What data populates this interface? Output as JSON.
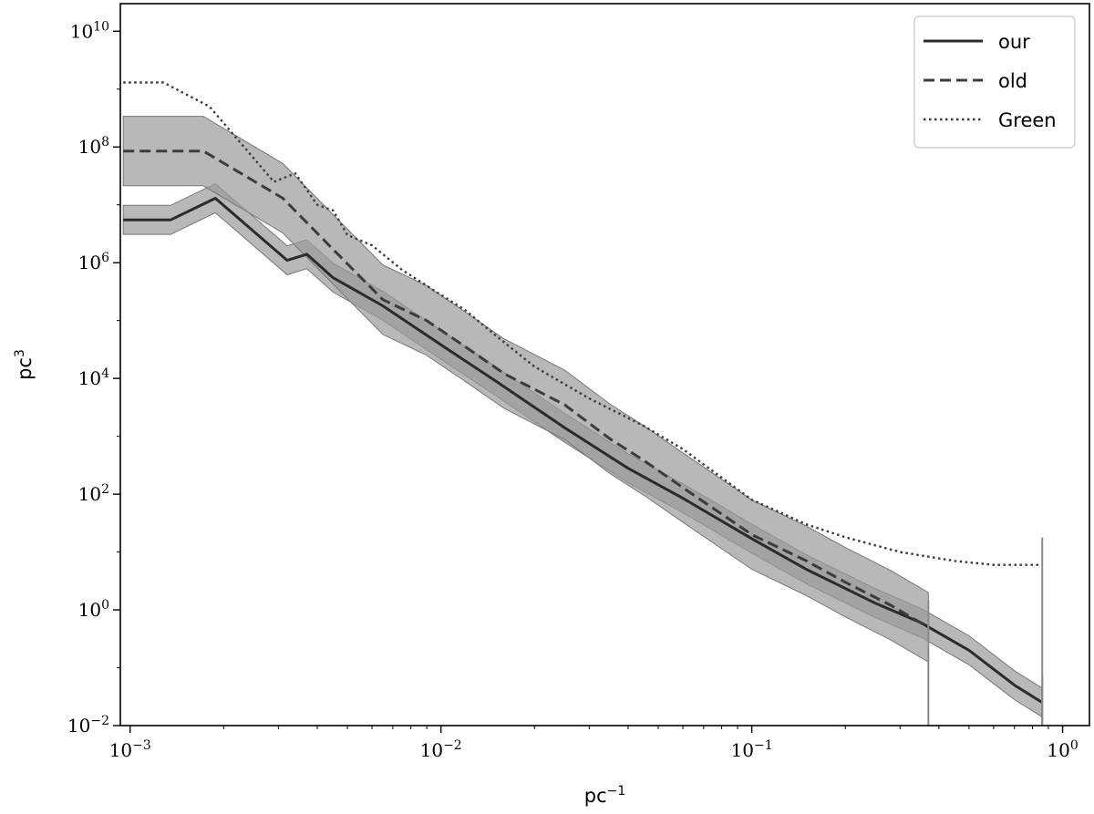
{
  "chart_data": {
    "type": "line",
    "xlabel_base": "pc",
    "xlabel_exp": "−1",
    "ylabel_base": "pc",
    "ylabel_exp": "3",
    "xscale": "log",
    "yscale": "log",
    "xlim": [
      0.00093,
      1.22
    ],
    "ylim": [
      0.01,
      30000000000
    ],
    "grid": false,
    "legend_position": "top-right",
    "x_ticks": [
      {
        "value": 0.001,
        "base": "10",
        "exp": "−3"
      },
      {
        "value": 0.01,
        "base": "10",
        "exp": "−2"
      },
      {
        "value": 0.1,
        "base": "10",
        "exp": "−1"
      },
      {
        "value": 1,
        "base": "10",
        "exp": "0"
      }
    ],
    "y_ticks": [
      {
        "value": 0.01,
        "base": "10",
        "exp": "−2"
      },
      {
        "value": 1,
        "base": "10",
        "exp": "0"
      },
      {
        "value": 100,
        "base": "10",
        "exp": "2"
      },
      {
        "value": 10000,
        "base": "10",
        "exp": "4"
      },
      {
        "value": 1000000,
        "base": "10",
        "exp": "6"
      },
      {
        "value": 100000000,
        "base": "10",
        "exp": "8"
      },
      {
        "value": 10000000000,
        "base": "10",
        "exp": "10"
      }
    ],
    "series": [
      {
        "name": "our",
        "style": "solid",
        "color": "#2b2b2b",
        "band": 0.25,
        "points": [
          [
            0.00095,
            5500000
          ],
          [
            0.00135,
            5500000
          ],
          [
            0.00188,
            13000000
          ],
          [
            0.0032,
            1100000
          ],
          [
            0.0037,
            1400000
          ],
          [
            0.0045,
            550000
          ],
          [
            0.0065,
            180000
          ],
          [
            0.01,
            38000
          ],
          [
            0.015,
            9000
          ],
          [
            0.025,
            1400
          ],
          [
            0.04,
            280
          ],
          [
            0.06,
            85
          ],
          [
            0.1,
            17
          ],
          [
            0.15,
            5
          ],
          [
            0.25,
            1.3
          ],
          [
            0.35,
            0.6
          ],
          [
            0.5,
            0.2
          ],
          [
            0.7,
            0.05
          ],
          [
            0.86,
            0.025
          ]
        ]
      },
      {
        "name": "old",
        "style": "dashed",
        "color": "#3c3c3c",
        "band": 0.6,
        "points": [
          [
            0.00095,
            85000000
          ],
          [
            0.00172,
            85000000
          ],
          [
            0.0031,
            13000000
          ],
          [
            0.0045,
            1700000
          ],
          [
            0.0065,
            230000
          ],
          [
            0.009,
            100000
          ],
          [
            0.012,
            35000
          ],
          [
            0.016,
            12000
          ],
          [
            0.025,
            3500
          ],
          [
            0.035,
            900
          ],
          [
            0.045,
            380
          ],
          [
            0.06,
            130
          ],
          [
            0.1,
            20
          ],
          [
            0.15,
            7
          ],
          [
            0.2,
            3
          ],
          [
            0.28,
            1.2
          ],
          [
            0.37,
            0.5
          ]
        ]
      },
      {
        "name": "Green",
        "style": "dotted",
        "color": "#3c3c3c",
        "band": 0,
        "points": [
          [
            0.00095,
            1300000000
          ],
          [
            0.00128,
            1300000000
          ],
          [
            0.0018,
            500000000
          ],
          [
            0.0029,
            25000000
          ],
          [
            0.0034,
            35000000
          ],
          [
            0.004,
            10000000
          ],
          [
            0.0045,
            8000000
          ],
          [
            0.005,
            3000000
          ],
          [
            0.006,
            2000000
          ],
          [
            0.0075,
            750000
          ],
          [
            0.009,
            400000
          ],
          [
            0.012,
            150000
          ],
          [
            0.015,
            55000
          ],
          [
            0.02,
            16000
          ],
          [
            0.03,
            4500
          ],
          [
            0.045,
            1500
          ],
          [
            0.06,
            600
          ],
          [
            0.1,
            80
          ],
          [
            0.15,
            30
          ],
          [
            0.2,
            18
          ],
          [
            0.3,
            10
          ],
          [
            0.45,
            7
          ],
          [
            0.6,
            6
          ],
          [
            0.86,
            6
          ]
        ]
      }
    ]
  }
}
